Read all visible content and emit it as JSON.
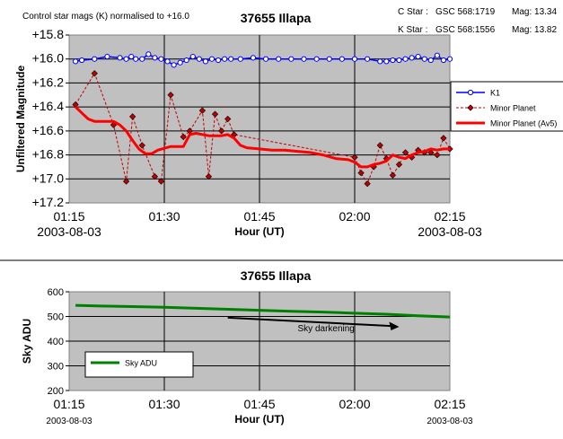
{
  "header": {
    "note": "Control star mags (K) normalised to +16.0",
    "c_star_label": "C Star :",
    "c_star_id": "GSC 568:1719",
    "c_star_mag": "Mag: 13.34",
    "k_star_label": "K Star :",
    "k_star_id": "GSC 568:1556",
    "k_star_mag": "Mag: 13.82"
  },
  "chart_data": [
    {
      "type": "line",
      "title": "37655 Illapa",
      "xlabel": "Hour (UT)",
      "ylabel": "Unfiltered Magnitude",
      "x_ticks": [
        "01:15",
        "01:30",
        "01:45",
        "02:00",
        "02:15"
      ],
      "x_date_left": "2003-08-03",
      "x_date_right": "2003-08-03",
      "xlim_minutes_after_0115": [
        0,
        60
      ],
      "y_ticks": [
        "+15.8",
        "+16.0",
        "+16.2",
        "+16.4",
        "+16.6",
        "+16.8",
        "+17.0",
        "+17.2"
      ],
      "ylim": [
        15.8,
        17.2
      ],
      "y_inverted": true,
      "grid": true,
      "legend_position": "right",
      "series": [
        {
          "name": "K1",
          "color": "#0000ff",
          "style": "line-with-open-circles",
          "x": [
            1,
            2,
            4,
            6,
            8,
            9,
            9.8,
            10.5,
            11.5,
            12.5,
            13.5,
            14.5,
            15.5,
            16.5,
            17.5,
            18.5,
            19.5,
            20.5,
            21.5,
            22.5,
            23.5,
            24.5,
            25.5,
            27,
            29,
            31,
            33,
            35,
            37,
            39,
            41,
            43,
            45,
            47,
            49,
            50,
            51,
            52,
            53,
            54,
            55,
            56,
            57,
            58,
            59,
            60
          ],
          "y": [
            16.02,
            16.01,
            16.0,
            15.98,
            15.99,
            16.0,
            15.98,
            16.0,
            16.0,
            15.96,
            15.99,
            16.0,
            16.02,
            16.05,
            16.03,
            16.01,
            15.98,
            16.0,
            16.02,
            16.0,
            16.01,
            16.0,
            16.0,
            16.0,
            15.99,
            16.0,
            16.0,
            16.0,
            16.0,
            16.0,
            16.0,
            16.0,
            16.0,
            16.0,
            16.02,
            16.02,
            16.01,
            16.01,
            16.0,
            15.99,
            15.98,
            16.0,
            16.01,
            15.97,
            16.01,
            16.0
          ]
        },
        {
          "name": "Minor Planet",
          "color": "#c00000",
          "style": "dashed-with-diamonds",
          "x": [
            1,
            4,
            7,
            9,
            10,
            11.5,
            13.5,
            14.5,
            16,
            18,
            19,
            21,
            22,
            23,
            24,
            25,
            26,
            45,
            46,
            47,
            48,
            49,
            50,
            51,
            52,
            53,
            54,
            55,
            56,
            57,
            58,
            59,
            60
          ],
          "y": [
            16.38,
            16.12,
            16.55,
            17.02,
            16.48,
            16.72,
            16.98,
            17.02,
            16.3,
            16.65,
            16.6,
            16.43,
            16.98,
            16.46,
            16.6,
            16.5,
            16.63,
            16.82,
            16.95,
            17.04,
            16.9,
            16.72,
            16.83,
            16.97,
            16.88,
            16.78,
            16.82,
            16.76,
            16.78,
            16.78,
            16.8,
            16.66,
            16.75
          ]
        },
        {
          "name": "Minor Planet (Av5)",
          "color": "#ff0000",
          "style": "thick-line",
          "x": [
            1,
            2,
            3,
            4,
            5,
            6,
            7,
            8,
            9,
            10,
            11,
            12,
            13,
            14,
            16,
            18,
            19,
            20,
            22,
            24,
            25,
            26,
            27,
            28,
            30,
            32,
            34,
            36,
            38,
            40,
            42,
            44,
            45,
            46,
            47,
            48,
            49,
            50,
            51,
            52,
            53,
            54,
            55,
            56,
            57,
            58,
            59,
            60
          ],
          "y": [
            16.4,
            16.45,
            16.5,
            16.52,
            16.52,
            16.52,
            16.52,
            16.55,
            16.6,
            16.68,
            16.75,
            16.79,
            16.79,
            16.76,
            16.73,
            16.73,
            16.63,
            16.62,
            16.64,
            16.64,
            16.63,
            16.66,
            16.72,
            16.74,
            16.75,
            16.76,
            16.76,
            16.77,
            16.78,
            16.8,
            16.83,
            16.84,
            16.86,
            16.9,
            16.9,
            16.88,
            16.87,
            16.85,
            16.8,
            16.82,
            16.83,
            16.8,
            16.78,
            16.77,
            16.75,
            16.76,
            16.75,
            16.75
          ]
        }
      ]
    },
    {
      "type": "line",
      "title": "37655 Illapa",
      "xlabel": "Hour (UT)",
      "ylabel": "Sky ADU",
      "x_ticks": [
        "01:15",
        "01:30",
        "01:45",
        "02:00",
        "02:15"
      ],
      "x_date_left": "2003-08-03",
      "x_date_right": "2003-08-03",
      "xlim_minutes_after_0115": [
        0,
        60
      ],
      "y_ticks": [
        "600",
        "500",
        "400",
        "300",
        "200"
      ],
      "ylim": [
        200,
        600
      ],
      "grid": true,
      "legend_position": "bottom-left",
      "annotation": "Sky darkening",
      "series": [
        {
          "name": "Sky ADU",
          "color": "#008000",
          "style": "thick-line",
          "x": [
            1,
            5,
            10,
            15,
            20,
            25,
            30,
            35,
            40,
            45,
            50,
            55,
            60
          ],
          "y": [
            545,
            542,
            540,
            537,
            533,
            529,
            525,
            521,
            518,
            513,
            509,
            503,
            498
          ]
        }
      ]
    }
  ]
}
